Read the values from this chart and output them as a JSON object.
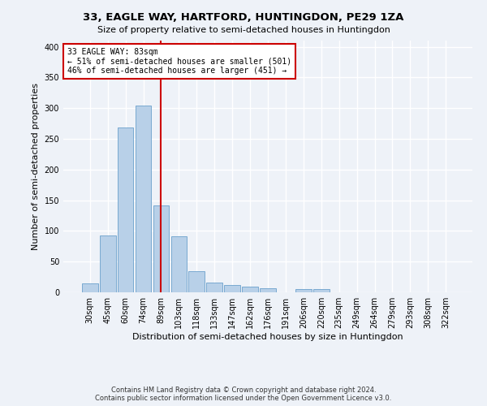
{
  "title": "33, EAGLE WAY, HARTFORD, HUNTINGDON, PE29 1ZA",
  "subtitle": "Size of property relative to semi-detached houses in Huntingdon",
  "xlabel": "Distribution of semi-detached houses by size in Huntingdon",
  "ylabel": "Number of semi-detached properties",
  "footnote": "Contains HM Land Registry data © Crown copyright and database right 2024.\nContains public sector information licensed under the Open Government Licence v3.0.",
  "categories": [
    "30sqm",
    "45sqm",
    "60sqm",
    "74sqm",
    "89sqm",
    "103sqm",
    "118sqm",
    "133sqm",
    "147sqm",
    "162sqm",
    "176sqm",
    "191sqm",
    "206sqm",
    "220sqm",
    "235sqm",
    "249sqm",
    "264sqm",
    "279sqm",
    "293sqm",
    "308sqm",
    "322sqm"
  ],
  "values": [
    14,
    93,
    268,
    304,
    142,
    91,
    35,
    16,
    12,
    9,
    6,
    0,
    5,
    5,
    0,
    0,
    0,
    0,
    0,
    0,
    0
  ],
  "bar_color": "#b8d0e8",
  "bar_edge_color": "#6aa0cc",
  "vline_index": 4,
  "vline_color": "#cc0000",
  "annotation_text": "33 EAGLE WAY: 83sqm\n← 51% of semi-detached houses are smaller (501)\n46% of semi-detached houses are larger (451) →",
  "annotation_box_color": "#ffffff",
  "annotation_box_edge": "#cc0000",
  "ylim": [
    0,
    410
  ],
  "yticks": [
    0,
    50,
    100,
    150,
    200,
    250,
    300,
    350,
    400
  ],
  "background_color": "#eef2f8",
  "grid_color": "#ffffff",
  "title_fontsize": 9.5,
  "subtitle_fontsize": 8,
  "tick_fontsize": 7,
  "ylabel_fontsize": 8,
  "xlabel_fontsize": 8,
  "annotation_fontsize": 7,
  "footnote_fontsize": 6
}
